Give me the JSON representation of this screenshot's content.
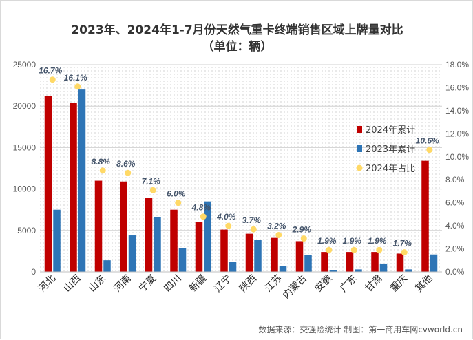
{
  "chart_data": {
    "type": "bar",
    "title": "2023年、2024年1-7月份天然气重卡终端销售区域上牌量对比",
    "subtitle": "（单位：辆）",
    "categories": [
      "河北",
      "山西",
      "山东",
      "河南",
      "宁夏",
      "四川",
      "新疆",
      "辽宁",
      "陕西",
      "江苏",
      "内蒙古",
      "安徽",
      "广东",
      "甘肃",
      "重庆",
      "其他"
    ],
    "series": [
      {
        "name": "2024年累计",
        "color": "#c00000",
        "axis": "left",
        "values": [
          21200,
          20400,
          11000,
          10900,
          8900,
          7500,
          6000,
          5100,
          4600,
          4100,
          3700,
          2400,
          2400,
          2400,
          2200,
          13400
        ]
      },
      {
        "name": "2023年累计",
        "color": "#2e75b6",
        "axis": "left",
        "values": [
          7500,
          22000,
          1400,
          4400,
          6600,
          2900,
          8500,
          1200,
          3900,
          700,
          2000,
          200,
          300,
          1000,
          300,
          2100
        ]
      },
      {
        "name": "2024年占比",
        "color": "#ffd966",
        "axis": "right",
        "type": "scatter",
        "values": [
          16.7,
          16.1,
          8.8,
          8.6,
          7.1,
          6.0,
          4.8,
          4.0,
          3.7,
          3.2,
          2.9,
          1.9,
          1.9,
          1.9,
          1.7,
          10.6
        ],
        "labels": [
          "16.7%",
          "16.1%",
          "8.8%",
          "8.6%",
          "7.1%",
          "6.0%",
          "4.8%",
          "4.0%",
          "3.7%",
          "3.2%",
          "2.9%",
          "1.9%",
          "1.9%",
          "1.9%",
          "1.7%",
          "10.6%"
        ]
      }
    ],
    "y_left": {
      "ylim": [
        0,
        25000
      ],
      "ticks": [
        "0",
        "5000",
        "10000",
        "15000",
        "20000",
        "25000"
      ]
    },
    "y_right": {
      "ylim": [
        0,
        18
      ],
      "ticks": [
        "0.0%",
        "2.0%",
        "4.0%",
        "6.0%",
        "8.0%",
        "10.0%",
        "12.0%",
        "14.0%",
        "16.0%",
        "18.0%"
      ]
    },
    "legend": {
      "position": "right",
      "items": [
        "2024年累计",
        "2023年累计",
        "2024年占比"
      ]
    },
    "grid": true
  },
  "source_text": "数据来源：交强险统计  制图：第一商用车网cvworld.cn"
}
